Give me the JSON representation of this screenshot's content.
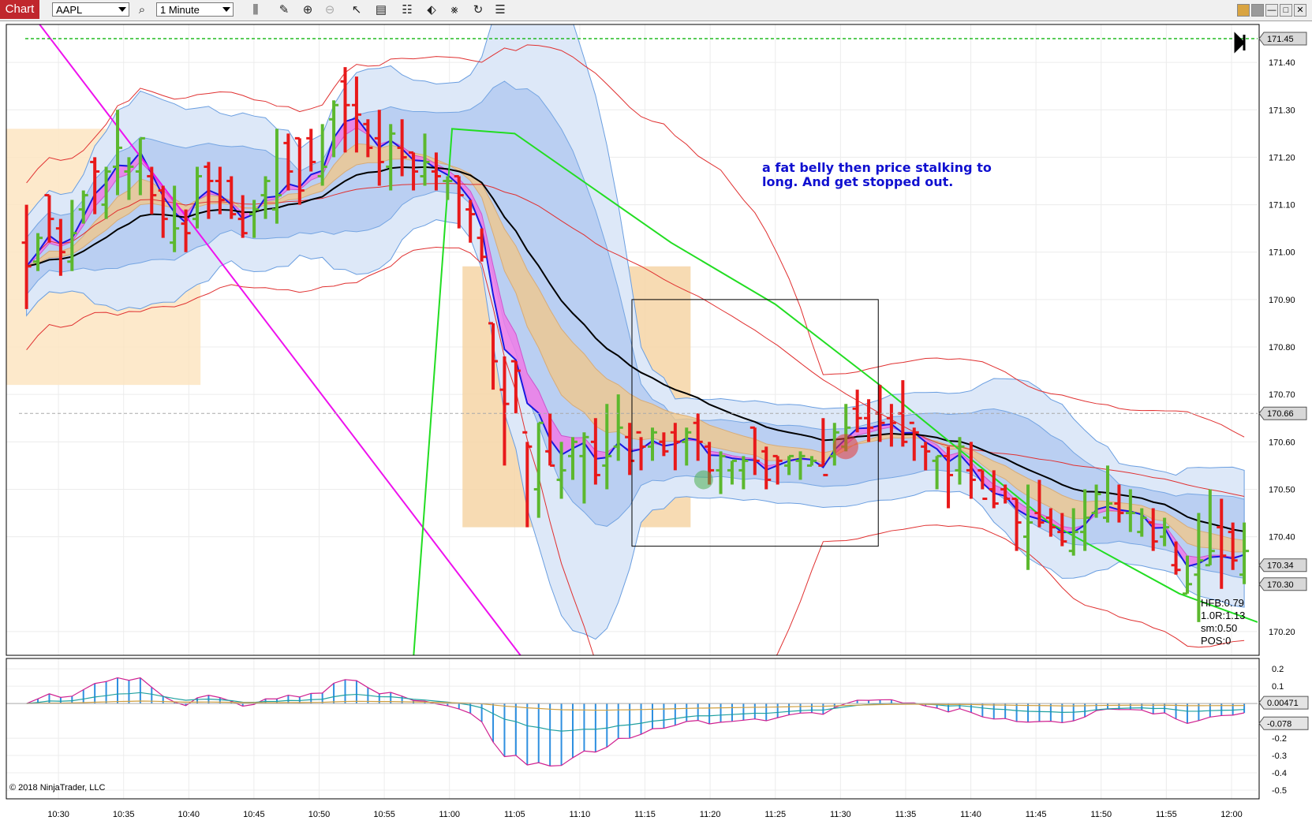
{
  "toolbar": {
    "tab_label": "Chart",
    "instrument": "AAPL",
    "interval": "1 Minute",
    "icons": [
      "search-icon",
      "bar-style-icon",
      "pencil-icon",
      "zoom-in-icon",
      "zoom-out-icon",
      "pointer-icon",
      "data-box-icon",
      "strategies-icon",
      "chart-trader-icon",
      "drawing-tools-icon",
      "refresh-icon",
      "properties-icon"
    ],
    "window_icons": [
      "color-icon",
      "theme-icon",
      "minimize-icon",
      "maximize-icon",
      "close-icon"
    ]
  },
  "colors": {
    "up_bar": "#5cb82e",
    "down_bar": "#e8191a",
    "band_outer": "#dde8f8",
    "band_inner": "#b7cdf2",
    "orange_band": "#f4c887",
    "kc_red": "#e03030",
    "green_line": "#22dd22",
    "magenta_line": "#ee11ee",
    "annotation": "#1010d0"
  },
  "annotation": {
    "line1": "a fat belly then price stalking to",
    "line2": "long. And get stopped out."
  },
  "stats": {
    "hfb": "HFB:0.79",
    "r": "1.0R:1.13",
    "sm": "sm:0.50",
    "pos": "POS:0"
  },
  "copyright": "© 2018 NinjaTrader, LLC",
  "chart_data": [
    {
      "type": "line",
      "name": "price-panel",
      "yticks": [
        "171.40",
        "171.30",
        "171.20",
        "171.10",
        "171.00",
        "170.90",
        "170.80",
        "170.70",
        "170.60",
        "170.50",
        "170.40",
        "170.20"
      ],
      "ylim": [
        170.15,
        171.48
      ],
      "price_markers": [
        {
          "label": "171.45",
          "value": 171.45,
          "color": "#d8d8d8"
        },
        {
          "label": "170.66",
          "value": 170.66,
          "color": "#d8d8d8"
        },
        {
          "label": "170.34",
          "value": 170.34,
          "color": "#d8d8d8"
        },
        {
          "label": "170.30",
          "value": 170.3,
          "color": "#d8d8d8"
        }
      ],
      "xticks": [
        "10:30",
        "10:35",
        "10:40",
        "10:45",
        "10:50",
        "10:55",
        "11:00",
        "11:05",
        "11:10",
        "11:15",
        "11:20",
        "11:25",
        "11:30",
        "11:35",
        "11:40",
        "11:45",
        "11:50",
        "11:55",
        "12:00"
      ],
      "x_start": "10:26",
      "x_end": "12:02",
      "bars": [
        [
          171.02,
          170.97,
          171.1,
          170.88
        ],
        [
          170.98,
          171.03,
          171.04,
          170.96
        ],
        [
          171.12,
          171.07,
          171.12,
          171.02
        ],
        [
          171.05,
          171.0,
          171.07,
          170.95
        ],
        [
          170.98,
          171.04,
          171.11,
          170.96
        ],
        [
          171.09,
          171.12,
          171.13,
          171.06
        ],
        [
          171.19,
          171.17,
          171.2,
          171.08
        ],
        [
          171.1,
          171.17,
          171.18,
          171.07
        ],
        [
          171.18,
          171.22,
          171.3,
          171.12
        ],
        [
          171.17,
          171.18,
          171.2,
          171.11
        ],
        [
          171.17,
          171.24,
          171.24,
          171.12
        ],
        [
          171.16,
          171.12,
          171.18,
          171.08
        ],
        [
          171.13,
          171.07,
          171.14,
          171.03
        ],
        [
          171.02,
          171.05,
          171.14,
          171.0
        ],
        [
          171.06,
          171.04,
          171.09,
          171.0
        ],
        [
          171.07,
          171.16,
          171.18,
          171.05
        ],
        [
          171.18,
          171.15,
          171.19,
          171.07
        ],
        [
          171.15,
          171.11,
          171.18,
          171.08
        ],
        [
          171.15,
          171.08,
          171.16,
          171.07
        ],
        [
          171.07,
          171.04,
          171.12,
          171.03
        ],
        [
          171.08,
          171.09,
          171.11,
          171.03
        ],
        [
          171.12,
          171.15,
          171.16,
          171.07
        ],
        [
          171.09,
          171.12,
          171.26,
          171.06
        ],
        [
          171.23,
          171.17,
          171.25,
          171.13
        ],
        [
          171.24,
          171.13,
          171.24,
          171.1
        ],
        [
          171.24,
          171.19,
          171.26,
          171.17
        ],
        [
          171.16,
          171.18,
          171.27,
          171.14
        ],
        [
          171.28,
          171.31,
          171.32,
          171.2
        ],
        [
          171.36,
          171.31,
          171.39,
          171.21
        ],
        [
          171.31,
          171.29,
          171.37,
          171.21
        ],
        [
          171.27,
          171.22,
          171.28,
          171.2
        ],
        [
          171.24,
          171.19,
          171.3,
          171.14
        ],
        [
          171.18,
          171.25,
          171.27,
          171.13
        ],
        [
          171.22,
          171.2,
          171.28,
          171.16
        ],
        [
          171.21,
          171.17,
          171.21,
          171.13
        ],
        [
          171.16,
          171.19,
          171.25,
          171.14
        ],
        [
          171.17,
          171.16,
          171.21,
          171.13
        ],
        [
          171.15,
          171.15,
          171.16,
          171.11
        ],
        [
          171.16,
          171.12,
          171.16,
          171.05
        ],
        [
          171.09,
          171.08,
          171.11,
          171.02
        ],
        [
          171.03,
          170.99,
          171.05,
          170.98
        ],
        [
          170.85,
          170.77,
          170.85,
          170.71
        ],
        [
          170.71,
          170.68,
          170.78,
          170.55
        ],
        [
          170.77,
          170.75,
          170.77,
          170.66
        ],
        [
          170.62,
          170.59,
          170.6,
          170.42
        ],
        [
          170.5,
          170.64,
          170.64,
          170.44
        ],
        [
          170.58,
          170.55,
          170.66,
          170.55
        ],
        [
          170.52,
          170.54,
          170.6,
          170.48
        ],
        [
          170.57,
          170.6,
          170.61,
          170.52
        ],
        [
          170.57,
          170.61,
          170.62,
          170.47
        ],
        [
          170.6,
          170.53,
          170.65,
          170.51
        ],
        [
          170.55,
          170.57,
          170.68,
          170.5
        ],
        [
          170.59,
          170.63,
          170.7,
          170.56
        ],
        [
          170.61,
          170.56,
          170.64,
          170.53
        ],
        [
          170.62,
          170.59,
          170.61,
          170.54
        ],
        [
          170.59,
          170.62,
          170.63,
          170.56
        ],
        [
          170.6,
          170.58,
          170.62,
          170.57
        ],
        [
          170.62,
          170.6,
          170.64,
          170.54
        ],
        [
          170.6,
          170.62,
          170.63,
          170.55
        ],
        [
          170.64,
          170.6,
          170.66,
          170.56
        ],
        [
          170.59,
          170.54,
          170.6,
          170.51
        ],
        [
          170.54,
          170.57,
          170.58,
          170.49
        ],
        [
          170.54,
          170.56,
          170.56,
          170.51
        ],
        [
          170.54,
          170.56,
          170.57,
          170.5
        ],
        [
          170.63,
          170.56,
          170.63,
          170.53
        ],
        [
          170.58,
          170.52,
          170.59,
          170.5
        ],
        [
          170.57,
          170.56,
          170.57,
          170.51
        ],
        [
          170.55,
          170.57,
          170.57,
          170.53
        ],
        [
          170.56,
          170.57,
          170.58,
          170.52
        ],
        [
          170.55,
          170.56,
          170.57,
          170.55
        ],
        [
          170.55,
          170.53,
          170.65,
          170.55
        ],
        [
          170.57,
          170.62,
          170.64,
          170.55
        ],
        [
          170.59,
          170.63,
          170.68,
          170.58
        ],
        [
          170.67,
          170.65,
          170.71,
          170.62
        ],
        [
          170.65,
          170.63,
          170.69,
          170.6
        ],
        [
          170.66,
          170.64,
          170.72,
          170.6
        ],
        [
          170.65,
          170.64,
          170.68,
          170.59
        ],
        [
          170.66,
          170.6,
          170.73,
          170.59
        ],
        [
          170.64,
          170.62,
          170.63,
          170.56
        ],
        [
          170.59,
          170.58,
          170.6,
          170.54
        ],
        [
          170.56,
          170.57,
          170.57,
          170.5
        ],
        [
          170.57,
          170.53,
          170.59,
          170.46
        ],
        [
          170.54,
          170.59,
          170.61,
          170.51
        ],
        [
          170.54,
          170.52,
          170.6,
          170.48
        ],
        [
          170.54,
          170.48,
          170.54,
          170.5
        ],
        [
          170.5,
          170.47,
          170.54,
          170.46
        ],
        [
          170.5,
          170.48,
          170.51,
          170.47
        ],
        [
          170.48,
          170.43,
          170.48,
          170.37
        ],
        [
          170.4,
          170.43,
          170.51,
          170.33
        ],
        [
          170.45,
          170.43,
          170.52,
          170.42
        ],
        [
          170.44,
          170.42,
          170.46,
          170.4
        ],
        [
          170.41,
          170.39,
          170.45,
          170.38
        ],
        [
          170.37,
          170.41,
          170.46,
          170.36
        ],
        [
          170.41,
          170.44,
          170.5,
          170.37
        ],
        [
          170.45,
          170.49,
          170.51,
          170.44
        ],
        [
          170.44,
          170.47,
          170.55,
          170.43
        ],
        [
          170.47,
          170.45,
          170.51,
          170.43
        ],
        [
          170.45,
          170.45,
          170.5,
          170.41
        ],
        [
          170.41,
          170.44,
          170.46,
          170.4
        ],
        [
          170.43,
          170.39,
          170.46,
          170.37
        ],
        [
          170.4,
          170.42,
          170.44,
          170.38
        ],
        [
          170.34,
          170.33,
          170.39,
          170.32
        ],
        [
          170.28,
          170.3,
          170.36,
          170.28
        ],
        [
          170.32,
          170.35,
          170.45,
          170.22
        ],
        [
          170.34,
          170.37,
          170.5,
          170.34
        ],
        [
          170.42,
          170.36,
          170.48,
          170.29
        ],
        [
          170.41,
          170.35,
          170.43,
          170.33
        ],
        [
          170.32,
          170.37,
          170.43,
          170.3
        ]
      ]
    },
    {
      "type": "bar",
      "name": "macd-panel",
      "yticks": [
        "0.2",
        "0.1",
        "-0.2",
        "-0.3",
        "-0.4",
        "-0.5"
      ],
      "ylim": [
        -0.55,
        0.26
      ],
      "value_markers": [
        {
          "label": "0.00471",
          "value": 0.00471
        },
        {
          "label": "-0.078",
          "value": -0.078
        }
      ]
    }
  ]
}
